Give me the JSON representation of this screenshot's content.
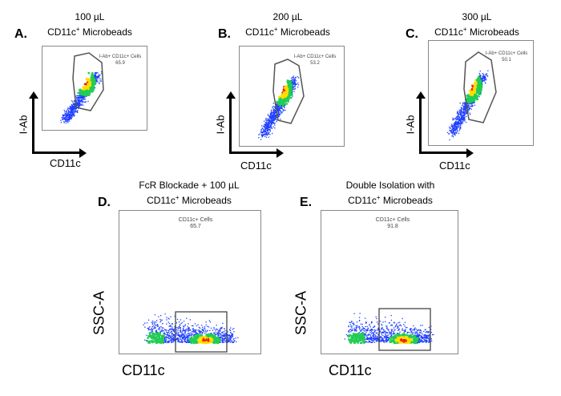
{
  "panels": {
    "a": {
      "letter": "A.",
      "title_line1": "100 µL",
      "title_line2_pre": "CD11c",
      "title_line2_sup": "+",
      "title_line2_post": " Microbeads",
      "gate_label": "I-Ab+ CD11c+ Cells",
      "gate_value": "65.9",
      "ylabel": "I-Ab",
      "xlabel": "CD11c"
    },
    "b": {
      "letter": "B.",
      "title_line1": "200 µL",
      "title_line2_pre": "CD11c",
      "title_line2_sup": "+",
      "title_line2_post": " Microbeads",
      "gate_label": "I-Ab+ CD11c+ Cells",
      "gate_value": "53.2",
      "ylabel": "I-Ab",
      "xlabel": "CD11c"
    },
    "c": {
      "letter": "C.",
      "title_line1": "300 µL",
      "title_line2_pre": "CD11c",
      "title_line2_sup": "+",
      "title_line2_post": " Microbeads",
      "gate_label": "I-Ab+ CD11c+ Cells",
      "gate_value": "50.1",
      "ylabel": "I-Ab",
      "xlabel": "CD11c"
    },
    "d": {
      "letter": "D.",
      "title_line1": "FcR Blockade + 100 µL",
      "title_line2_pre": "CD11c",
      "title_line2_sup": "+",
      "title_line2_post": " Microbeads",
      "gate_label": "CD11c+ Cells",
      "gate_value": "65.7",
      "ylabel": "SSC-A",
      "xlabel": "CD11c"
    },
    "e": {
      "letter": "E.",
      "title_line1": "Double Isolation with",
      "title_line2_pre": "CD11c",
      "title_line2_sup": "+",
      "title_line2_post": " Microbeads",
      "gate_label": "CD11c+ Cells",
      "gate_value": "91.8",
      "ylabel": "SSC-A",
      "xlabel": "CD11c"
    }
  },
  "chart_data": [
    {
      "type": "scatter",
      "panel": "A",
      "title": "100 µL CD11c+ Microbeads",
      "xlabel": "CD11c",
      "ylabel": "I-Ab",
      "gates": [
        {
          "name": "I-Ab+ CD11c+ Cells",
          "percent": 65.9
        }
      ]
    },
    {
      "type": "scatter",
      "panel": "B",
      "title": "200 µL CD11c+ Microbeads",
      "xlabel": "CD11c",
      "ylabel": "I-Ab",
      "gates": [
        {
          "name": "I-Ab+ CD11c+ Cells",
          "percent": 53.2
        }
      ]
    },
    {
      "type": "scatter",
      "panel": "C",
      "title": "300 µL CD11c+ Microbeads",
      "xlabel": "CD11c",
      "ylabel": "I-Ab",
      "gates": [
        {
          "name": "I-Ab+ CD11c+ Cells",
          "percent": 50.1
        }
      ]
    },
    {
      "type": "scatter",
      "panel": "D",
      "title": "FcR Blockade + 100 µL CD11c+ Microbeads",
      "xlabel": "CD11c",
      "ylabel": "SSC-A",
      "gates": [
        {
          "name": "CD11c+ Cells",
          "percent": 65.7
        }
      ]
    },
    {
      "type": "scatter",
      "panel": "E",
      "title": "Double Isolation with CD11c+ Microbeads",
      "xlabel": "CD11c",
      "ylabel": "SSC-A",
      "gates": [
        {
          "name": "CD11c+ Cells",
          "percent": 91.8
        }
      ]
    }
  ],
  "colors": {
    "density_low": "#1f3fff",
    "density_mid": "#22cc55",
    "density_high": "#ffdd00",
    "density_peak": "#ee2200",
    "gate": "#555555"
  }
}
